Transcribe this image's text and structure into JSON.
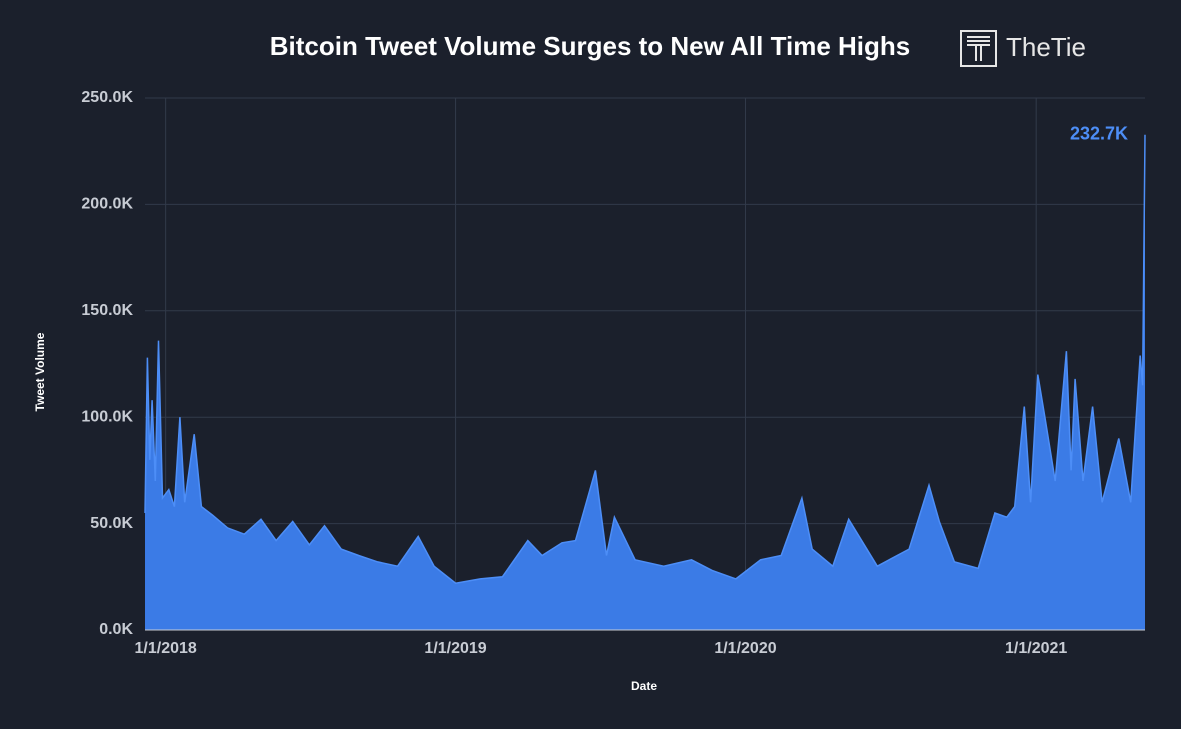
{
  "chart_data": {
    "type": "area",
    "title": "Bitcoin Tweet Volume Surges to New All Time Highs",
    "brand": "TheTie",
    "x_label": "Date",
    "y_label": "Tweet Volume",
    "color": "#3b7be6",
    "line_color": "#4d8ef7",
    "grid": true,
    "x": [
      "12/6/2017",
      "12/9/2017",
      "12/12/2017",
      "12/15/2017",
      "12/19/2017",
      "12/23/2017",
      "12/28/2017",
      "1/5/2018",
      "1/12/2018",
      "1/19/2018",
      "1/25/2018",
      "2/6/2018",
      "2/15/2018",
      "3/1/2018",
      "3/20/2018",
      "4/10/2018",
      "5/1/2018",
      "5/20/2018",
      "6/10/2018",
      "7/1/2018",
      "7/20/2018",
      "8/10/2018",
      "9/1/2018",
      "9/25/2018",
      "10/20/2018",
      "11/15/2018",
      "12/5/2018",
      "1/1/2019",
      "2/1/2019",
      "3/1/2019",
      "4/2/2019",
      "4/20/2019",
      "5/15/2019",
      "6/1/2019",
      "6/26/2019",
      "7/10/2019",
      "7/20/2019",
      "8/15/2019",
      "9/20/2019",
      "10/25/2019",
      "11/20/2019",
      "12/20/2019",
      "1/20/2020",
      "2/15/2020",
      "3/12/2020",
      "3/25/2020",
      "4/20/2020",
      "5/10/2020",
      "6/15/2020",
      "7/25/2020",
      "8/19/2020",
      "9/1/2020",
      "9/20/2020",
      "10/20/2020",
      "11/10/2020",
      "11/25/2020",
      "12/5/2020",
      "12/17/2020",
      "12/25/2020",
      "1/3/2021",
      "1/12/2021",
      "1/25/2021",
      "2/8/2021",
      "2/14/2021",
      "2/19/2021",
      "3/1/2021",
      "3/13/2021",
      "3/25/2021",
      "4/15/2021",
      "4/30/2021",
      "5/12/2021",
      "5/15/2021",
      "5/18/2021"
    ],
    "values": [
      55000,
      128000,
      80000,
      108000,
      70000,
      136000,
      62000,
      66000,
      58000,
      100000,
      60000,
      92000,
      58000,
      54000,
      48000,
      45000,
      52000,
      42000,
      51000,
      40000,
      49000,
      38000,
      35000,
      32000,
      30000,
      44000,
      30000,
      22000,
      24000,
      25000,
      42000,
      35000,
      41000,
      42000,
      75000,
      35000,
      53000,
      33000,
      30000,
      33000,
      28000,
      24000,
      33000,
      35000,
      62000,
      38000,
      30000,
      52000,
      30000,
      38000,
      68000,
      51000,
      32000,
      29000,
      55000,
      53000,
      58000,
      105000,
      60000,
      120000,
      100000,
      70000,
      131000,
      75000,
      118000,
      70000,
      105000,
      60000,
      90000,
      60000,
      129000,
      115000,
      232700
    ],
    "annotation": {
      "x": "5/18/2021",
      "value": 232700,
      "text": "232.7K"
    },
    "xlim": [
      "12/6/2017",
      "5/18/2021"
    ],
    "xticks": [
      "1/1/2018",
      "1/1/2019",
      "1/1/2020",
      "1/1/2021"
    ],
    "ylim": [
      0,
      250000
    ],
    "yticks": [
      {
        "value": 0,
        "label": "0.0K"
      },
      {
        "value": 50000,
        "label": "50.0K"
      },
      {
        "value": 100000,
        "label": "100.0K"
      },
      {
        "value": 150000,
        "label": "150.0K"
      },
      {
        "value": 200000,
        "label": "200.0K"
      },
      {
        "value": 250000,
        "label": "250.0K"
      }
    ]
  }
}
